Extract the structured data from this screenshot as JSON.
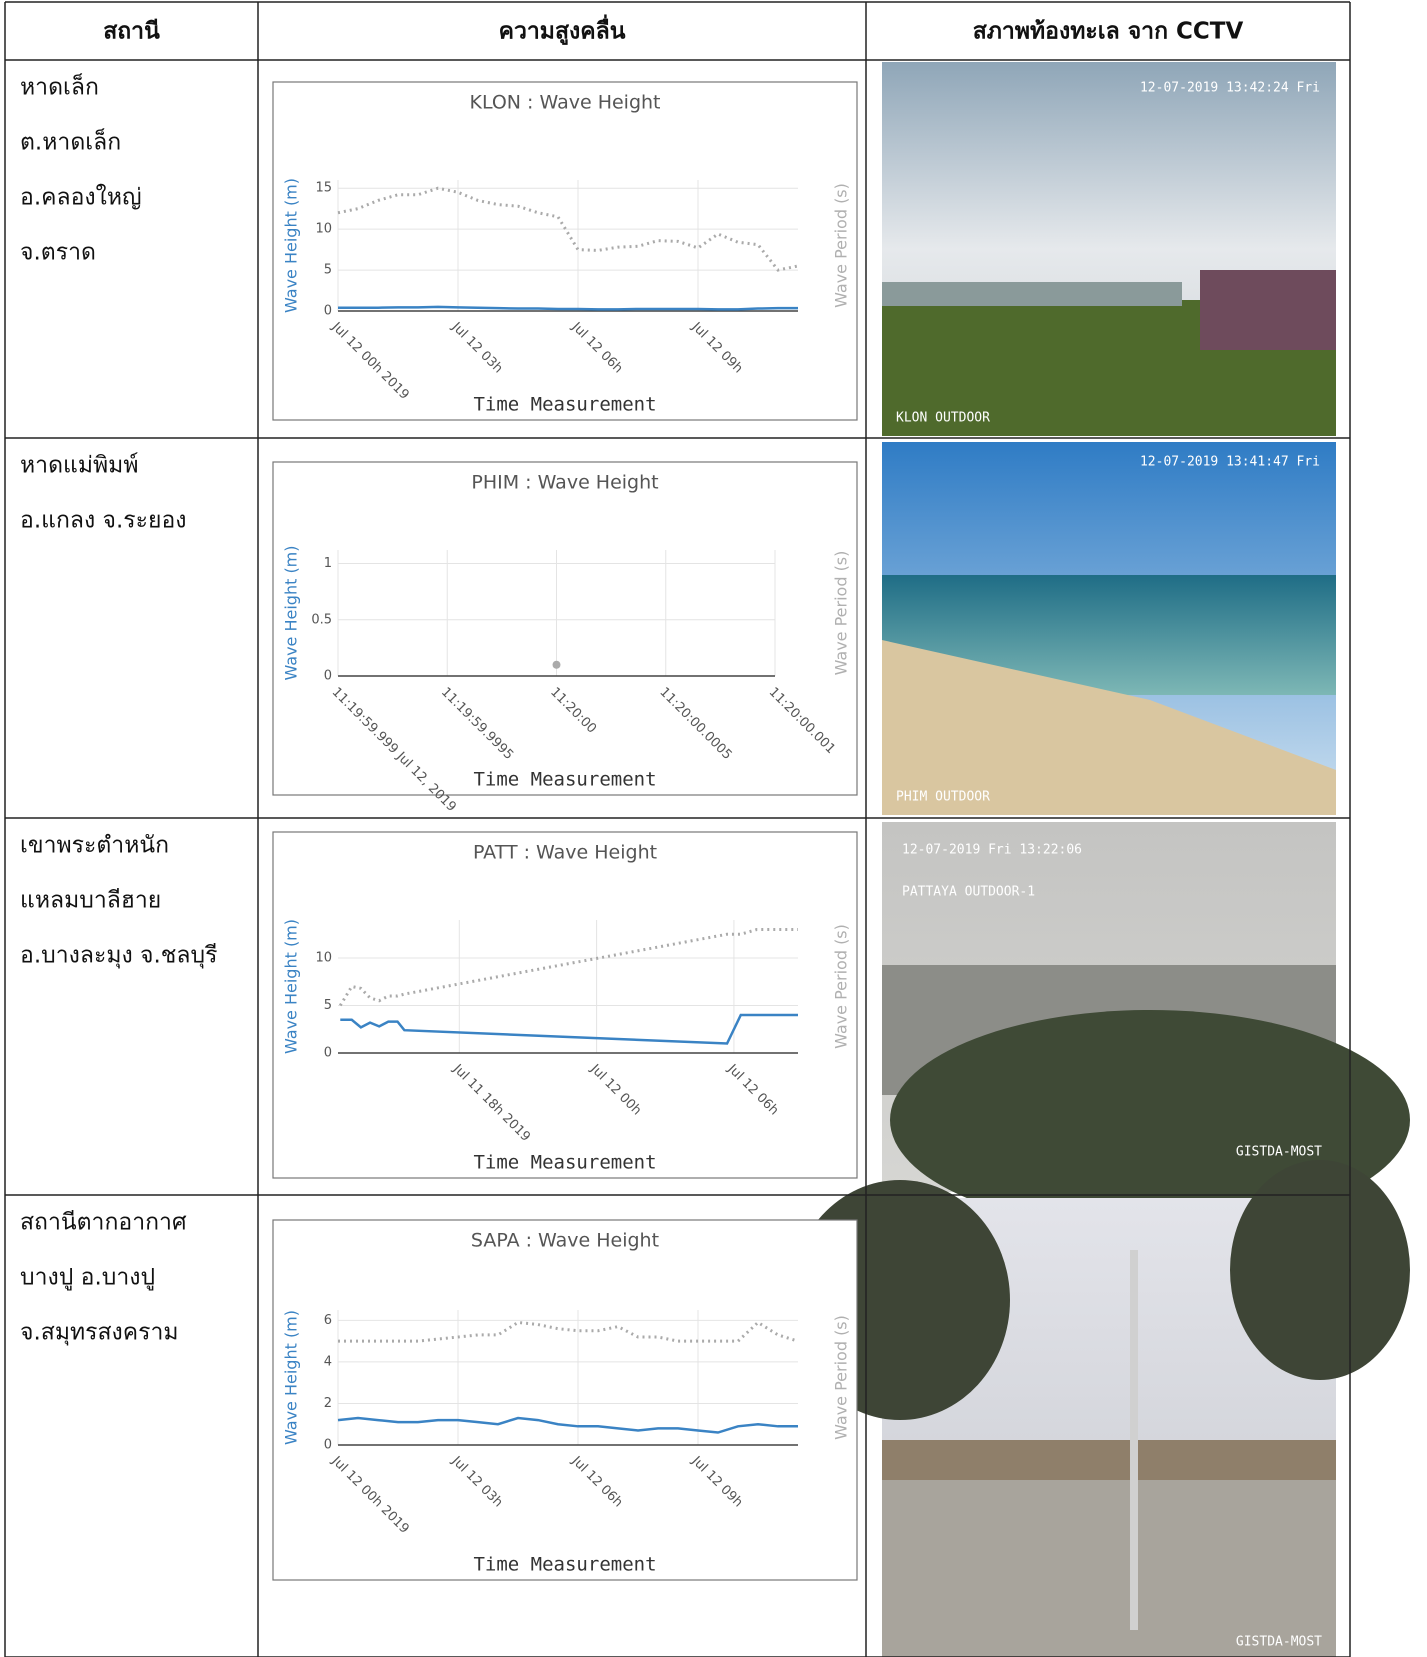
{
  "table": {
    "header": [
      "สถานี",
      "ความสูงคลื่น",
      "สภาพท้องทะเล จาก CCTV"
    ],
    "rows": [
      {
        "station": [
          "หาดเล็ก",
          "ต.หาดเล็ก",
          "อ.คลองใหญ่",
          "จ.ตราด"
        ],
        "cctv": [
          "12-07-2019 13:42:24 Fri",
          "KLON OUTDOOR"
        ]
      },
      {
        "station": [
          "หาดแม่พิมพ์",
          "อ.แกลง จ.ระยอง"
        ],
        "cctv": [
          "12-07-2019 13:41:47 Fri",
          "PHIM OUTDOOR"
        ]
      },
      {
        "station": [
          "เขาพระตำหนัก",
          "แหลมบาลีฮาย",
          "อ.บางละมุง จ.ชลบุรี"
        ],
        "cctv": [
          "12-07-2019 Fri 13:22:06",
          "PATTAYA OUTDOOR-1",
          "GISTDA-MOST"
        ]
      },
      {
        "station": [
          "สถานีตากอากาศ",
          "บางปู อ.บางปู",
          "จ.สมุทรสงคราม"
        ],
        "cctv": [
          "GISTDA-MOST"
        ]
      }
    ]
  },
  "chart_data": [
    {
      "type": "line",
      "title": "KLON : Wave Height",
      "xlabel": "Time Measurement",
      "ylabel": "Wave Height (m)",
      "y2label": "Wave Period (s)",
      "x": [
        0,
        0.5,
        1,
        1.5,
        2,
        2.5,
        3,
        3.5,
        4,
        4.5,
        5,
        5.5,
        6,
        6.5,
        7,
        7.5,
        8,
        8.5,
        9,
        9.5,
        10,
        10.5,
        11,
        11.5
      ],
      "series": [
        {
          "color": "#3a83c4",
          "values": [
            0.4,
            0.4,
            0.4,
            0.45,
            0.45,
            0.5,
            0.45,
            0.4,
            0.35,
            0.3,
            0.3,
            0.25,
            0.25,
            0.2,
            0.2,
            0.25,
            0.25,
            0.25,
            0.25,
            0.2,
            0.2,
            0.3,
            0.35,
            0.35
          ]
        },
        {
          "color": "#aaaaaa",
          "dash": "dotted",
          "values": [
            12,
            12.5,
            13.5,
            14.2,
            14.2,
            15,
            14.5,
            13.5,
            13,
            12.8,
            12,
            11.5,
            7.5,
            7.4,
            7.8,
            7.9,
            8.6,
            8.5,
            7.7,
            9.4,
            8.4,
            8.1,
            5,
            5.5
          ]
        }
      ],
      "xlim": [
        0,
        11.5
      ],
      "ylim": [
        0,
        16
      ],
      "xticks": [
        {
          "value": 0,
          "label": "Jul 12 00h 2019"
        },
        {
          "value": 3,
          "label": "Jul 12 03h"
        },
        {
          "value": 6,
          "label": "Jul 12 06h"
        },
        {
          "value": 9,
          "label": "Jul 12 09h"
        }
      ],
      "yticks": [
        0,
        5,
        10,
        15
      ],
      "grid": true
    },
    {
      "type": "line",
      "title": "PHIM : Wave Height",
      "xlabel": "Time Measurement",
      "ylabel": "Wave Height (m)",
      "y2label": "Wave Period (s)",
      "x": [
        0
      ],
      "series": [
        {
          "color": "#aaaaaa",
          "values": [
            0.1
          ]
        }
      ],
      "xlim": [
        -1,
        1
      ],
      "ylim": [
        0,
        1.12
      ],
      "xticks": [
        {
          "value": -1,
          "label": "11:19:59.999 Jul 12, 2019"
        },
        {
          "value": -0.5,
          "label": "11:19:59.9995"
        },
        {
          "value": 0,
          "label": "11:20:00"
        },
        {
          "value": 0.5,
          "label": "11:20:00.0005"
        },
        {
          "value": 1,
          "label": "11:20:00.001"
        }
      ],
      "yticks": [
        0,
        0.5,
        1
      ],
      "grid": true
    },
    {
      "type": "line",
      "title": "PATT : Wave Height",
      "xlabel": "Time Measurement",
      "ylabel": "Wave Height (m)",
      "y2label": "Wave Period (s)",
      "x": [
        -11.2,
        -10.7,
        -10.3,
        -9.9,
        -9.5,
        -9.1,
        -8.7,
        -8.4,
        5.7,
        6.3,
        7,
        8.8
      ],
      "series": [
        {
          "color": "#3a83c4",
          "values": [
            3.5,
            3.5,
            2.7,
            3.2,
            2.8,
            3.3,
            3.3,
            2.4,
            1,
            4,
            4,
            4
          ]
        },
        {
          "color": "#aaaaaa",
          "dash": "dotted",
          "values": [
            5,
            7,
            6.8,
            5.8,
            5.5,
            6,
            6,
            6.2,
            12.5,
            12.5,
            13,
            13
          ]
        }
      ],
      "xlim": [
        -11.3,
        8.8
      ],
      "ylim": [
        0,
        14
      ],
      "xticks": [
        {
          "value": -6,
          "label": "Jul 11 18h 2019"
        },
        {
          "value": 0,
          "label": "Jul 12 00h"
        },
        {
          "value": 6,
          "label": "Jul 12 06h"
        }
      ],
      "yticks": [
        0,
        5,
        10
      ],
      "grid": true
    },
    {
      "type": "line",
      "title": "SAPA : Wave Height",
      "xlabel": "Time Measurement",
      "ylabel": "Wave Height (m)",
      "y2label": "Wave Period (s)",
      "x": [
        0,
        0.5,
        1,
        1.5,
        2,
        2.5,
        3,
        3.5,
        4,
        4.5,
        5,
        5.5,
        6,
        6.5,
        7,
        7.5,
        8,
        8.5,
        9,
        9.5,
        10,
        10.5,
        11,
        11.5
      ],
      "series": [
        {
          "color": "#3a83c4",
          "values": [
            1.2,
            1.3,
            1.2,
            1.1,
            1.1,
            1.2,
            1.2,
            1.1,
            1.0,
            1.3,
            1.2,
            1.0,
            0.9,
            0.9,
            0.8,
            0.7,
            0.8,
            0.8,
            0.7,
            0.6,
            0.9,
            1.0,
            0.9,
            0.9
          ]
        },
        {
          "color": "#aaaaaa",
          "dash": "dotted",
          "values": [
            5,
            5,
            5,
            5,
            5,
            5.1,
            5.2,
            5.3,
            5.3,
            5.9,
            5.8,
            5.6,
            5.5,
            5.5,
            5.7,
            5.2,
            5.2,
            5,
            5,
            5,
            5,
            5.9,
            5.3,
            5
          ]
        }
      ],
      "xlim": [
        0,
        11.5
      ],
      "ylim": [
        0,
        6.5
      ],
      "xticks": [
        {
          "value": 0,
          "label": "Jul 12 00h 2019"
        },
        {
          "value": 3,
          "label": "Jul 12 03h"
        },
        {
          "value": 6,
          "label": "Jul 12 06h"
        },
        {
          "value": 9,
          "label": "Jul 12 09h"
        }
      ],
      "yticks": [
        0,
        2,
        4,
        6
      ],
      "grid": true
    }
  ]
}
